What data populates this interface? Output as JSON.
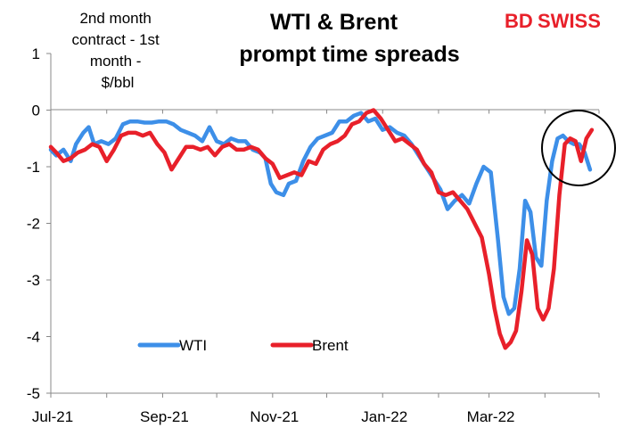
{
  "chart_data": {
    "type": "line",
    "title_lines": [
      "WTI & Brent",
      "prompt time spreads"
    ],
    "ylabel_lines": [
      "2nd month",
      "contract - 1st",
      "month -",
      "$/bbl"
    ],
    "ylim": [
      -5,
      1
    ],
    "yticks": [
      1,
      0,
      -1,
      -2,
      -3,
      -4,
      -5
    ],
    "ytick_labels": [
      "1",
      "0",
      "-1",
      "-2",
      "-3",
      "-4",
      "-5"
    ],
    "xtick_labels": [
      "Jul-21",
      "Sep-21",
      "Nov-21",
      "Jan-22",
      "Mar-22"
    ],
    "xtick_dates": [
      "2021-07-01",
      "2021-09-01",
      "2021-11-01",
      "2022-01-01",
      "2022-03-01"
    ],
    "x_range": [
      "2021-07-01",
      "2022-05-01"
    ],
    "grid": false,
    "legend": "bottom-left",
    "series": [
      {
        "name": "WTI",
        "color": "#3d8fe8",
        "x": [
          "2021-07-01",
          "2021-07-04",
          "2021-07-08",
          "2021-07-12",
          "2021-07-15",
          "2021-07-19",
          "2021-07-22",
          "2021-07-25",
          "2021-07-29",
          "2021-08-02",
          "2021-08-06",
          "2021-08-10",
          "2021-08-14",
          "2021-08-18",
          "2021-08-22",
          "2021-08-26",
          "2021-08-30",
          "2021-09-03",
          "2021-09-07",
          "2021-09-11",
          "2021-09-15",
          "2021-09-19",
          "2021-09-23",
          "2021-09-27",
          "2021-10-01",
          "2021-10-05",
          "2021-10-09",
          "2021-10-13",
          "2021-10-17",
          "2021-10-21",
          "2021-10-25",
          "2021-10-28",
          "2021-10-31",
          "2021-11-03",
          "2021-11-07",
          "2021-11-10",
          "2021-11-14",
          "2021-11-18",
          "2021-11-22",
          "2021-11-26",
          "2021-11-30",
          "2021-12-04",
          "2021-12-08",
          "2021-12-12",
          "2021-12-16",
          "2021-12-20",
          "2021-12-24",
          "2021-12-28",
          "2022-01-01",
          "2022-01-05",
          "2022-01-09",
          "2022-01-13",
          "2022-01-17",
          "2022-01-21",
          "2022-01-25",
          "2022-01-29",
          "2022-02-02",
          "2022-02-06",
          "2022-02-10",
          "2022-02-14",
          "2022-02-18",
          "2022-02-22",
          "2022-02-26",
          "2022-03-02",
          "2022-03-06",
          "2022-03-09",
          "2022-03-12",
          "2022-03-15",
          "2022-03-18",
          "2022-03-21",
          "2022-03-24",
          "2022-03-27",
          "2022-03-30",
          "2022-04-02",
          "2022-04-05",
          "2022-04-08",
          "2022-04-11",
          "2022-04-14",
          "2022-04-17",
          "2022-04-20",
          "2022-04-23",
          "2022-04-26"
        ],
        "values": [
          -0.7,
          -0.8,
          -0.7,
          -0.9,
          -0.6,
          -0.4,
          -0.3,
          -0.6,
          -0.55,
          -0.6,
          -0.5,
          -0.25,
          -0.2,
          -0.2,
          -0.22,
          -0.22,
          -0.2,
          -0.2,
          -0.25,
          -0.35,
          -0.4,
          -0.45,
          -0.55,
          -0.3,
          -0.55,
          -0.6,
          -0.5,
          -0.55,
          -0.55,
          -0.7,
          -0.75,
          -0.85,
          -1.3,
          -1.45,
          -1.5,
          -1.3,
          -1.25,
          -0.9,
          -0.65,
          -0.5,
          -0.45,
          -0.4,
          -0.2,
          -0.2,
          -0.1,
          -0.05,
          -0.2,
          -0.15,
          -0.35,
          -0.3,
          -0.4,
          -0.45,
          -0.6,
          -0.8,
          -1.0,
          -1.2,
          -1.4,
          -1.75,
          -1.6,
          -1.5,
          -1.65,
          -1.3,
          -1.0,
          -1.1,
          -2.3,
          -3.3,
          -3.6,
          -3.5,
          -2.8,
          -1.6,
          -1.8,
          -2.6,
          -2.75,
          -1.6,
          -0.9,
          -0.5,
          -0.45,
          -0.55,
          -0.6,
          -0.6,
          -0.75,
          -1.05
        ]
      },
      {
        "name": "Brent",
        "color": "#e8202a",
        "x": [
          "2021-07-01",
          "2021-07-04",
          "2021-07-08",
          "2021-07-12",
          "2021-07-16",
          "2021-07-20",
          "2021-07-24",
          "2021-07-28",
          "2021-08-01",
          "2021-08-05",
          "2021-08-09",
          "2021-08-13",
          "2021-08-17",
          "2021-08-21",
          "2021-08-25",
          "2021-08-29",
          "2021-09-02",
          "2021-09-06",
          "2021-09-10",
          "2021-09-14",
          "2021-09-18",
          "2021-09-22",
          "2021-09-26",
          "2021-09-30",
          "2021-10-04",
          "2021-10-08",
          "2021-10-12",
          "2021-10-16",
          "2021-10-20",
          "2021-10-24",
          "2021-10-28",
          "2021-11-01",
          "2021-11-05",
          "2021-11-09",
          "2021-11-13",
          "2021-11-17",
          "2021-11-21",
          "2021-11-25",
          "2021-11-29",
          "2021-12-03",
          "2021-12-07",
          "2021-12-11",
          "2021-12-15",
          "2021-12-19",
          "2021-12-23",
          "2021-12-27",
          "2021-12-31",
          "2022-01-04",
          "2022-01-08",
          "2022-01-12",
          "2022-01-16",
          "2022-01-20",
          "2022-01-24",
          "2022-01-28",
          "2022-02-01",
          "2022-02-05",
          "2022-02-09",
          "2022-02-13",
          "2022-02-17",
          "2022-02-21",
          "2022-02-25",
          "2022-03-01",
          "2022-03-04",
          "2022-03-07",
          "2022-03-10",
          "2022-03-13",
          "2022-03-16",
          "2022-03-19",
          "2022-03-22",
          "2022-03-25",
          "2022-03-28",
          "2022-03-31",
          "2022-04-03",
          "2022-04-06",
          "2022-04-09",
          "2022-04-12",
          "2022-04-15",
          "2022-04-18",
          "2022-04-21",
          "2022-04-24",
          "2022-04-27"
        ],
        "values": [
          -0.65,
          -0.75,
          -0.9,
          -0.85,
          -0.75,
          -0.7,
          -0.6,
          -0.65,
          -0.9,
          -0.7,
          -0.45,
          -0.4,
          -0.4,
          -0.45,
          -0.4,
          -0.6,
          -0.75,
          -1.05,
          -0.85,
          -0.65,
          -0.65,
          -0.7,
          -0.65,
          -0.8,
          -0.65,
          -0.6,
          -0.7,
          -0.7,
          -0.65,
          -0.7,
          -0.85,
          -0.95,
          -1.2,
          -1.15,
          -1.1,
          -1.15,
          -0.9,
          -0.95,
          -0.7,
          -0.6,
          -0.55,
          -0.45,
          -0.25,
          -0.2,
          -0.05,
          0.0,
          -0.15,
          -0.35,
          -0.55,
          -0.5,
          -0.6,
          -0.7,
          -0.95,
          -1.1,
          -1.45,
          -1.5,
          -1.45,
          -1.6,
          -1.75,
          -2.0,
          -2.25,
          -2.9,
          -3.5,
          -3.95,
          -4.2,
          -4.1,
          -3.9,
          -3.2,
          -2.3,
          -2.55,
          -3.5,
          -3.7,
          -3.5,
          -2.8,
          -1.5,
          -0.6,
          -0.5,
          -0.55,
          -0.9,
          -0.5,
          -0.35
        ]
      }
    ]
  },
  "logo": {
    "part1": "BD",
    "part2": "SWISS"
  }
}
